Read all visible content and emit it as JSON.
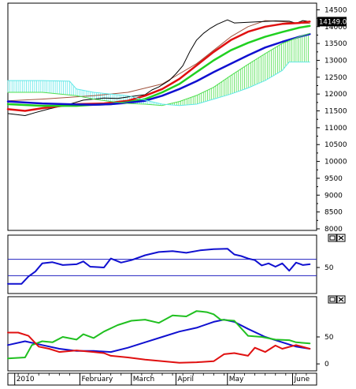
{
  "chart_data": [
    {
      "panel": "price",
      "type": "line",
      "price_tag": "14149.00",
      "y_ticks": [
        "14500",
        "14000",
        "13500",
        "13000",
        "12500",
        "12000",
        "11500",
        "11000",
        "10500",
        "10000",
        "9500",
        "9000",
        "8500",
        "8000"
      ],
      "ylim": [
        8000,
        14650
      ],
      "grid": false,
      "series": [
        {
          "key": "chikou",
          "color": "#a0523c",
          "width": 1,
          "points": [
            [
              0,
              11800
            ],
            [
              10,
              11850
            ],
            [
              25,
              11950
            ],
            [
              35,
              12050
            ],
            [
              45,
              12300
            ],
            [
              50,
              12600
            ],
            [
              55,
              12900
            ],
            [
              60,
              13300
            ],
            [
              65,
              13700
            ],
            [
              70,
              14000
            ],
            [
              75,
              14180
            ],
            [
              80,
              14150
            ],
            [
              85,
              14100
            ],
            [
              88,
              14100
            ]
          ]
        },
        {
          "key": "price",
          "color": "#000000",
          "width": 1,
          "points": [
            [
              0,
              11420
            ],
            [
              5,
              11360
            ],
            [
              8,
              11450
            ],
            [
              12,
              11560
            ],
            [
              18,
              11700
            ],
            [
              22,
              11820
            ],
            [
              28,
              11880
            ],
            [
              32,
              11870
            ],
            [
              36,
              11930
            ],
            [
              40,
              11980
            ],
            [
              42,
              12120
            ],
            [
              44,
              12210
            ],
            [
              47,
              12400
            ],
            [
              49,
              12600
            ],
            [
              51,
              12840
            ],
            [
              53,
              13250
            ],
            [
              55,
              13600
            ],
            [
              57,
              13800
            ],
            [
              59,
              13950
            ],
            [
              61,
              14070
            ],
            [
              64,
              14200
            ],
            [
              66,
              14110
            ],
            [
              70,
              14130
            ],
            [
              74,
              14150
            ],
            [
              78,
              14170
            ],
            [
              82,
              14160
            ],
            [
              84,
              14100
            ],
            [
              86,
              14180
            ],
            [
              88,
              14149
            ]
          ]
        },
        {
          "key": "red_ma",
          "color": "#e01010",
          "width": 2.5,
          "points": [
            [
              0,
              11550
            ],
            [
              5,
              11500
            ],
            [
              10,
              11580
            ],
            [
              20,
              11700
            ],
            [
              28,
              11720
            ],
            [
              35,
              11800
            ],
            [
              40,
              11950
            ],
            [
              45,
              12150
            ],
            [
              50,
              12450
            ],
            [
              55,
              12850
            ],
            [
              60,
              13250
            ],
            [
              65,
              13600
            ],
            [
              70,
              13850
            ],
            [
              75,
              14000
            ],
            [
              80,
              14080
            ],
            [
              85,
              14110
            ],
            [
              88,
              14149
            ]
          ]
        },
        {
          "key": "green_ma",
          "color": "#20d020",
          "width": 2.5,
          "points": [
            [
              0,
              11700
            ],
            [
              10,
              11650
            ],
            [
              20,
              11650
            ],
            [
              25,
              11680
            ],
            [
              30,
              11700
            ],
            [
              35,
              11760
            ],
            [
              40,
              11850
            ],
            [
              45,
              12050
            ],
            [
              50,
              12300
            ],
            [
              55,
              12650
            ],
            [
              60,
              13000
            ],
            [
              65,
              13300
            ],
            [
              70,
              13520
            ],
            [
              75,
              13700
            ],
            [
              80,
              13840
            ],
            [
              85,
              13970
            ],
            [
              88,
              14020
            ]
          ]
        },
        {
          "key": "blue_ma",
          "color": "#1010d0",
          "width": 2.5,
          "points": [
            [
              0,
              11780
            ],
            [
              10,
              11720
            ],
            [
              20,
              11690
            ],
            [
              25,
              11680
            ],
            [
              30,
              11700
            ],
            [
              35,
              11740
            ],
            [
              40,
              11800
            ],
            [
              45,
              11950
            ],
            [
              50,
              12150
            ],
            [
              55,
              12380
            ],
            [
              60,
              12650
            ],
            [
              65,
              12900
            ],
            [
              70,
              13150
            ],
            [
              75,
              13380
            ],
            [
              80,
              13550
            ],
            [
              85,
              13700
            ],
            [
              88,
              13780
            ]
          ]
        },
        {
          "key": "cloud_span_a",
          "color": "#50e050",
          "width": 1,
          "points": [
            [
              0,
              12050
            ],
            [
              10,
              12050
            ],
            [
              20,
              11950
            ],
            [
              25,
              11850
            ],
            [
              30,
              11780
            ],
            [
              35,
              11720
            ],
            [
              40,
              11700
            ],
            [
              45,
              11660
            ],
            [
              50,
              11780
            ],
            [
              55,
              11960
            ],
            [
              60,
              12200
            ],
            [
              65,
              12550
            ],
            [
              70,
              12880
            ],
            [
              75,
              13200
            ],
            [
              80,
              13500
            ],
            [
              85,
              13700
            ],
            [
              88,
              13800
            ]
          ]
        },
        {
          "key": "cloud_span_b",
          "color": "#60e8e8",
          "width": 1,
          "points": [
            [
              0,
              12400
            ],
            [
              10,
              12400
            ],
            [
              18,
              12380
            ],
            [
              20,
              12150
            ],
            [
              25,
              12050
            ],
            [
              30,
              12000
            ],
            [
              35,
              11950
            ],
            [
              40,
              11820
            ],
            [
              45,
              11700
            ],
            [
              50,
              11660
            ],
            [
              55,
              11700
            ],
            [
              60,
              11850
            ],
            [
              65,
              12000
            ],
            [
              70,
              12180
            ],
            [
              75,
              12400
            ],
            [
              80,
              12700
            ],
            [
              82,
              12950
            ],
            [
              88,
              12950
            ]
          ]
        }
      ]
    },
    {
      "panel": "oscillator_1",
      "type": "line",
      "y_ticks": [
        "50"
      ],
      "ylim": [
        -10,
        110
      ],
      "reference_levels": [
        70,
        30
      ],
      "series": [
        {
          "key": "osc",
          "color": "#1010d0",
          "width": 2,
          "points": [
            [
              0,
              10
            ],
            [
              4,
              10
            ],
            [
              6,
              28
            ],
            [
              8,
              40
            ],
            [
              10,
              60
            ],
            [
              13,
              63
            ],
            [
              16,
              56
            ],
            [
              20,
              58
            ],
            [
              22,
              65
            ],
            [
              24,
              52
            ],
            [
              28,
              50
            ],
            [
              30,
              72
            ],
            [
              33,
              62
            ],
            [
              36,
              68
            ],
            [
              40,
              80
            ],
            [
              44,
              88
            ],
            [
              48,
              90
            ],
            [
              52,
              86
            ],
            [
              56,
              92
            ],
            [
              60,
              95
            ],
            [
              64,
              96
            ],
            [
              66,
              82
            ],
            [
              68,
              78
            ],
            [
              70,
              72
            ],
            [
              72,
              68
            ],
            [
              74,
              55
            ],
            [
              76,
              60
            ],
            [
              78,
              52
            ],
            [
              80,
              60
            ],
            [
              82,
              42
            ],
            [
              84,
              62
            ],
            [
              86,
              56
            ],
            [
              88,
              58
            ]
          ]
        }
      ]
    },
    {
      "panel": "oscillator_2",
      "type": "line",
      "y_ticks": [
        "50",
        "0"
      ],
      "ylim": [
        -10,
        110
      ],
      "series": [
        {
          "key": "blue",
          "color": "#1010d0",
          "width": 2,
          "points": [
            [
              0,
              35
            ],
            [
              5,
              42
            ],
            [
              10,
              35
            ],
            [
              15,
              28
            ],
            [
              20,
              24
            ],
            [
              25,
              24
            ],
            [
              30,
              22
            ],
            [
              35,
              30
            ],
            [
              40,
              40
            ],
            [
              45,
              50
            ],
            [
              50,
              60
            ],
            [
              55,
              67
            ],
            [
              60,
              78
            ],
            [
              63,
              82
            ],
            [
              66,
              78
            ],
            [
              70,
              65
            ],
            [
              75,
              50
            ],
            [
              80,
              40
            ],
            [
              84,
              32
            ],
            [
              88,
              28
            ]
          ]
        },
        {
          "key": "green",
          "color": "#20c020",
          "width": 2,
          "points": [
            [
              0,
              10
            ],
            [
              5,
              12
            ],
            [
              7,
              35
            ],
            [
              10,
              42
            ],
            [
              13,
              40
            ],
            [
              16,
              50
            ],
            [
              20,
              45
            ],
            [
              22,
              55
            ],
            [
              25,
              48
            ],
            [
              28,
              60
            ],
            [
              32,
              72
            ],
            [
              36,
              80
            ],
            [
              40,
              82
            ],
            [
              44,
              76
            ],
            [
              48,
              90
            ],
            [
              52,
              88
            ],
            [
              55,
              98
            ],
            [
              58,
              96
            ],
            [
              60,
              92
            ],
            [
              62,
              82
            ],
            [
              66,
              80
            ],
            [
              70,
              52
            ],
            [
              74,
              50
            ],
            [
              78,
              45
            ],
            [
              82,
              44
            ],
            [
              84,
              40
            ],
            [
              88,
              38
            ]
          ]
        },
        {
          "key": "red",
          "color": "#e01010",
          "width": 2,
          "points": [
            [
              0,
              58
            ],
            [
              3,
              58
            ],
            [
              6,
              52
            ],
            [
              9,
              32
            ],
            [
              12,
              28
            ],
            [
              15,
              22
            ],
            [
              20,
              25
            ],
            [
              25,
              22
            ],
            [
              28,
              20
            ],
            [
              30,
              15
            ],
            [
              35,
              12
            ],
            [
              40,
              8
            ],
            [
              45,
              5
            ],
            [
              50,
              2
            ],
            [
              55,
              3
            ],
            [
              60,
              5
            ],
            [
              63,
              18
            ],
            [
              66,
              20
            ],
            [
              70,
              15
            ],
            [
              72,
              30
            ],
            [
              75,
              22
            ],
            [
              78,
              34
            ],
            [
              80,
              28
            ],
            [
              84,
              35
            ],
            [
              88,
              28
            ]
          ]
        }
      ]
    }
  ],
  "x_axis": {
    "domain": [
      0,
      90
    ],
    "months": [
      {
        "label": "2010",
        "x": 2
      },
      {
        "label": "February",
        "x": 21
      },
      {
        "label": "March",
        "x": 36
      },
      {
        "label": "April",
        "x": 49
      },
      {
        "label": "May",
        "x": 64
      },
      {
        "label": "June",
        "x": 83
      }
    ]
  },
  "panel_buttons": {
    "minimize": "□",
    "close": "✕"
  }
}
